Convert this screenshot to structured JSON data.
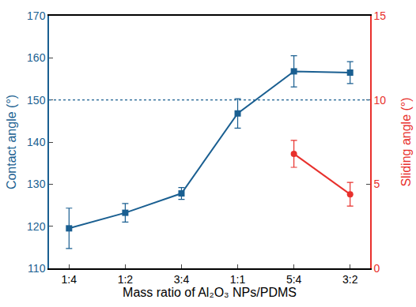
{
  "chart_data": {
    "type": "line",
    "x_label": "Mass ratio of Al₂O₃ NPs/PDMS",
    "y_label": "Contact angle (°)",
    "y2_label": "Sliding angle (°)",
    "categories": [
      "1:4",
      "1:2",
      "3:4",
      "1:1",
      "5:4",
      "3:2"
    ],
    "series": [
      {
        "name": "Contact angle",
        "color": "#1a5f91",
        "marker": "square",
        "line_style": "solid",
        "values": [
          119.5,
          123.2,
          127.8,
          146.8,
          156.8,
          156.5
        ],
        "errors": [
          4.8,
          2.2,
          1.4,
          3.5,
          3.7,
          2.6
        ]
      },
      {
        "name": "Sliding angle",
        "color": "#e8302c",
        "marker": "circle",
        "line_style": "solid",
        "axis": "y2",
        "values": [
          null,
          null,
          null,
          null,
          6.8,
          4.4
        ],
        "errors": [
          null,
          null,
          null,
          null,
          0.8,
          0.7
        ]
      }
    ],
    "hline": {
      "value": 150,
      "color": "#1a5f91",
      "line_style": "dot"
    },
    "ylim": [
      110,
      170
    ],
    "yticks": [
      110,
      120,
      130,
      140,
      150,
      160,
      170
    ],
    "y2lim": [
      0,
      15
    ],
    "y2ticks": [
      0,
      5,
      10,
      15
    ],
    "grid": false
  }
}
